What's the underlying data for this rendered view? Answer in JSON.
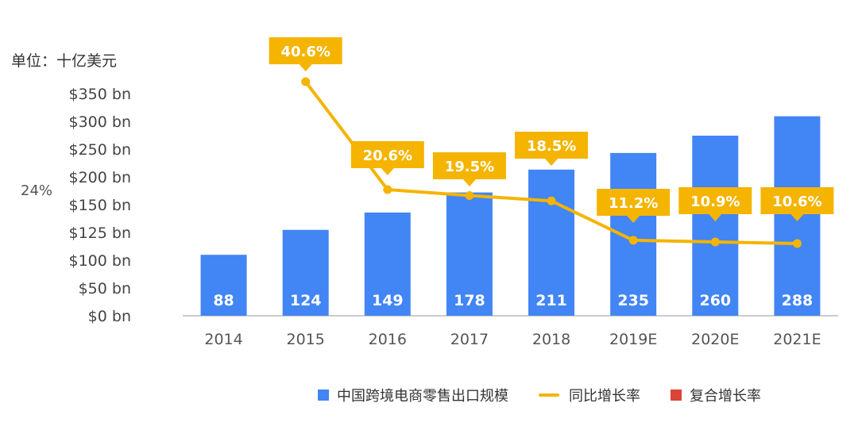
{
  "unit_label": "单位：十亿美元",
  "cagr_label": "24%",
  "colors": {
    "bar": "#4285F4",
    "line": "#F4B400",
    "cagr": "#DB4437",
    "axis_text": "#555555",
    "bar_label": "#ffffff"
  },
  "legend": [
    {
      "label": "中国跨境电商零售出口规模",
      "kind": "box",
      "color": "#4285F4"
    },
    {
      "label": "同比增长率",
      "kind": "line",
      "color": "#F4B400"
    },
    {
      "label": "复合增长率",
      "kind": "box",
      "color": "#DB4437"
    }
  ],
  "chart_data": {
    "type": "bar",
    "categories": [
      "2014",
      "2015",
      "2016",
      "2017",
      "2018",
      "2019E",
      "2020E",
      "2021E"
    ],
    "series": [
      {
        "name": "中国跨境电商零售出口规模",
        "type": "bar",
        "values": [
          88,
          124,
          149,
          178,
          211,
          235,
          260,
          288
        ]
      },
      {
        "name": "同比增长率",
        "type": "line",
        "unit": "%",
        "values": [
          null,
          40.6,
          20.6,
          19.5,
          18.5,
          11.2,
          10.9,
          10.6
        ],
        "labels": [
          "",
          "40.6%",
          "20.6%",
          "19.5%",
          "18.5%",
          "11.2%",
          "10.9%",
          "10.6%"
        ]
      }
    ],
    "y_ticks": [
      "$0 bn",
      "$50 bn",
      "$100 bn",
      "$125 bn",
      "$150 bn",
      "$200 bn",
      "$250 bn",
      "$300 bn",
      "$350 bn"
    ],
    "y_tick_values": [
      0,
      50,
      100,
      125,
      150,
      200,
      250,
      300,
      350
    ],
    "grid": false,
    "legend_position": "bottom"
  }
}
